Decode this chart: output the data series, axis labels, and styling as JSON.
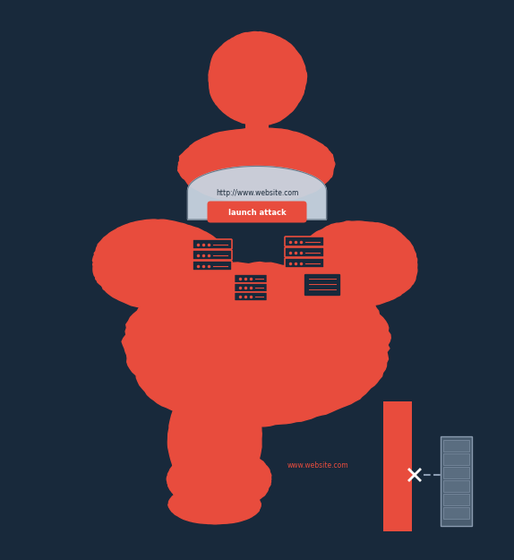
{
  "bg_color": "#18293b",
  "red_color": "#e84c3d",
  "gray_color": "#8a9bb0",
  "light_gray": "#c8d4e0",
  "white_color": "#ffffff",
  "url_text": "http://www.website.com",
  "button_text": "launch attack",
  "server_label": "www.website.com",
  "figsize": [
    5.74,
    6.25
  ],
  "dpi": 100
}
